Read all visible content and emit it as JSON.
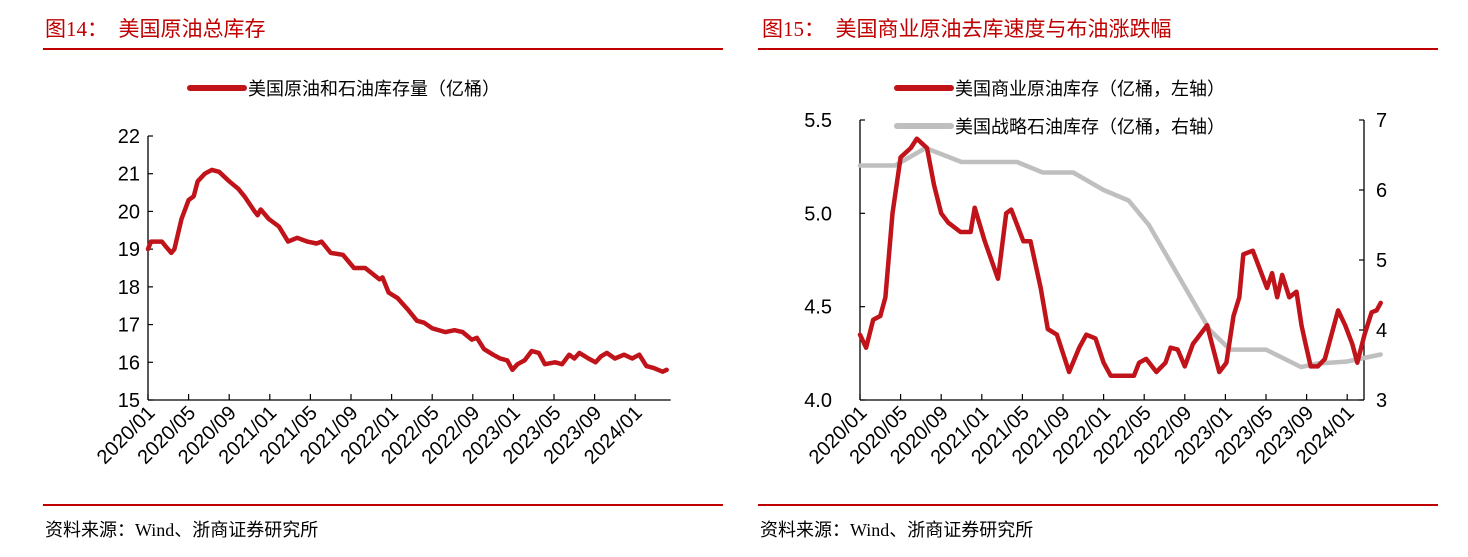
{
  "left": {
    "title": "图14：  美国原油总库存",
    "source": "资料来源：Wind、浙商证券研究所"
  },
  "right": {
    "title": "图15：  美国商业原油去库速度与布油涨跌幅",
    "source": "资料来源：Wind、浙商证券研究所"
  },
  "colors": {
    "accent": "#c00000",
    "series_red": "#c0141a",
    "series_gray": "#bfbfbf"
  },
  "chart_data": [
    {
      "type": "line",
      "title": "",
      "legend_position": "top",
      "grid": false,
      "xlabel": "",
      "ylabel": "",
      "x_ticks": [
        "2020/01",
        "2020/05",
        "2020/09",
        "2021/01",
        "2021/05",
        "2021/09",
        "2022/01",
        "2022/05",
        "2022/09",
        "2023/01",
        "2023/05",
        "2023/09",
        "2024/01"
      ],
      "y_ticks": [
        "22",
        "21",
        "20",
        "19",
        "18",
        "17",
        "16",
        "15"
      ],
      "ylim": [
        15,
        22
      ],
      "xlim": [
        "2020-01-01",
        "2024-04-10"
      ],
      "series": [
        {
          "name": "美国原油和石油库存量（亿桶）",
          "color": "#c0141a",
          "points": [
            [
              "2020-01-01",
              19.0
            ],
            [
              "2020-01-10",
              19.2
            ],
            [
              "2020-02-12",
              19.2
            ],
            [
              "2020-02-21",
              19.1
            ],
            [
              "2020-03-10",
              18.9
            ],
            [
              "2020-03-19",
              19.0
            ],
            [
              "2020-04-10",
              19.8
            ],
            [
              "2020-05-01",
              20.3
            ],
            [
              "2020-05-16",
              20.4
            ],
            [
              "2020-05-28",
              20.8
            ],
            [
              "2020-06-19",
              21.0
            ],
            [
              "2020-07-10",
              21.1
            ],
            [
              "2020-08-01",
              21.05
            ],
            [
              "2020-09-01",
              20.8
            ],
            [
              "2020-09-28",
              20.6
            ],
            [
              "2020-10-16",
              20.4
            ],
            [
              "2020-11-16",
              20.0
            ],
            [
              "2020-11-25",
              19.9
            ],
            [
              "2020-12-04",
              20.05
            ],
            [
              "2020-12-28",
              19.8
            ],
            [
              "2021-01-28",
              19.6
            ],
            [
              "2021-02-25",
              19.2
            ],
            [
              "2021-03-22",
              19.3
            ],
            [
              "2021-04-22",
              19.2
            ],
            [
              "2021-05-19",
              19.15
            ],
            [
              "2021-06-04",
              19.2
            ],
            [
              "2021-07-01",
              18.9
            ],
            [
              "2021-08-07",
              18.85
            ],
            [
              "2021-09-10",
              18.5
            ],
            [
              "2021-10-13",
              18.5
            ],
            [
              "2021-11-25",
              18.2
            ],
            [
              "2021-12-04",
              18.25
            ],
            [
              "2021-12-22",
              17.85
            ],
            [
              "2022-01-19",
              17.7
            ],
            [
              "2022-02-19",
              17.4
            ],
            [
              "2022-03-16",
              17.1
            ],
            [
              "2022-04-07",
              17.05
            ],
            [
              "2022-05-01",
              16.9
            ],
            [
              "2022-06-10",
              16.8
            ],
            [
              "2022-07-07",
              16.85
            ],
            [
              "2022-08-01",
              16.8
            ],
            [
              "2022-08-28",
              16.6
            ],
            [
              "2022-09-13",
              16.65
            ],
            [
              "2022-10-04",
              16.35
            ],
            [
              "2022-11-01",
              16.2
            ],
            [
              "2022-11-22",
              16.1
            ],
            [
              "2022-12-13",
              16.05
            ],
            [
              "2022-12-28",
              15.8
            ],
            [
              "2023-01-13",
              15.95
            ],
            [
              "2023-02-04",
              16.05
            ],
            [
              "2023-02-25",
              16.3
            ],
            [
              "2023-03-16",
              16.25
            ],
            [
              "2023-04-04",
              15.95
            ],
            [
              "2023-05-04",
              16.0
            ],
            [
              "2023-05-25",
              15.95
            ],
            [
              "2023-06-16",
              16.2
            ],
            [
              "2023-07-01",
              16.1
            ],
            [
              "2023-07-16",
              16.25
            ],
            [
              "2023-08-13",
              16.1
            ],
            [
              "2023-09-04",
              16.0
            ],
            [
              "2023-09-19",
              16.15
            ],
            [
              "2023-10-07",
              16.25
            ],
            [
              "2023-11-01",
              16.1
            ],
            [
              "2023-11-28",
              16.2
            ],
            [
              "2023-12-22",
              16.1
            ],
            [
              "2024-01-13",
              16.2
            ],
            [
              "2024-02-04",
              15.9
            ],
            [
              "2024-02-25",
              15.85
            ],
            [
              "2024-03-22",
              15.75
            ],
            [
              "2024-04-04",
              15.8
            ]
          ]
        }
      ]
    },
    {
      "type": "line",
      "title": "",
      "legend_position": "top",
      "grid": false,
      "xlabel": "",
      "ylabel": "",
      "y2label": "",
      "x_ticks": [
        "2020/01",
        "2020/05",
        "2020/09",
        "2021/01",
        "2021/05",
        "2021/09",
        "2022/01",
        "2022/05",
        "2022/09",
        "2023/01",
        "2023/05",
        "2023/09",
        "2024/01"
      ],
      "y_ticks": [
        "5.5",
        "5.0",
        "4.5",
        "4.0"
      ],
      "y2_ticks": [
        "7",
        "6",
        "5",
        "4",
        "3"
      ],
      "ylim": [
        4.0,
        5.5
      ],
      "y2lim": [
        3,
        7
      ],
      "xlim": [
        "2020-01-01",
        "2024-04-10"
      ],
      "series": [
        {
          "name": "美国商业原油库存（亿桶，左轴）",
          "axis": "left",
          "color": "#c0141a",
          "points": [
            [
              "2020-01-01",
              4.35
            ],
            [
              "2020-01-19",
              4.28
            ],
            [
              "2020-02-10",
              4.43
            ],
            [
              "2020-03-01",
              4.45
            ],
            [
              "2020-03-16",
              4.55
            ],
            [
              "2020-04-07",
              5.0
            ],
            [
              "2020-05-01",
              5.3
            ],
            [
              "2020-06-01",
              5.35
            ],
            [
              "2020-06-19",
              5.4
            ],
            [
              "2020-07-19",
              5.35
            ],
            [
              "2020-08-10",
              5.15
            ],
            [
              "2020-09-01",
              5.0
            ],
            [
              "2020-09-22",
              4.95
            ],
            [
              "2020-10-28",
              4.9
            ],
            [
              "2020-11-28",
              4.9
            ],
            [
              "2020-12-10",
              5.03
            ],
            [
              "2021-01-10",
              4.85
            ],
            [
              "2021-02-19",
              4.65
            ],
            [
              "2021-03-13",
              5.0
            ],
            [
              "2021-03-28",
              5.02
            ],
            [
              "2021-05-04",
              4.85
            ],
            [
              "2021-05-25",
              4.85
            ],
            [
              "2021-06-25",
              4.6
            ],
            [
              "2021-07-16",
              4.38
            ],
            [
              "2021-08-13",
              4.35
            ],
            [
              "2021-09-01",
              4.25
            ],
            [
              "2021-09-19",
              4.15
            ],
            [
              "2021-10-19",
              4.28
            ],
            [
              "2021-11-10",
              4.35
            ],
            [
              "2021-12-07",
              4.33
            ],
            [
              "2022-01-01",
              4.2
            ],
            [
              "2022-01-22",
              4.13
            ],
            [
              "2022-03-01",
              4.13
            ],
            [
              "2022-04-01",
              4.13
            ],
            [
              "2022-04-16",
              4.2
            ],
            [
              "2022-05-07",
              4.22
            ],
            [
              "2022-06-07",
              4.15
            ],
            [
              "2022-07-04",
              4.2
            ],
            [
              "2022-07-19",
              4.28
            ],
            [
              "2022-08-10",
              4.27
            ],
            [
              "2022-09-01",
              4.18
            ],
            [
              "2022-09-25",
              4.3
            ],
            [
              "2022-11-07",
              4.4
            ],
            [
              "2022-12-13",
              4.15
            ],
            [
              "2023-01-04",
              4.2
            ],
            [
              "2023-01-25",
              4.45
            ],
            [
              "2023-02-12",
              4.55
            ],
            [
              "2023-02-24",
              4.78
            ],
            [
              "2023-03-22",
              4.8
            ],
            [
              "2023-04-13",
              4.7
            ],
            [
              "2023-05-04",
              4.6
            ],
            [
              "2023-05-19",
              4.68
            ],
            [
              "2023-06-04",
              4.55
            ],
            [
              "2023-06-19",
              4.67
            ],
            [
              "2023-07-10",
              4.55
            ],
            [
              "2023-08-01",
              4.58
            ],
            [
              "2023-08-16",
              4.4
            ],
            [
              "2023-08-28",
              4.3
            ],
            [
              "2023-09-13",
              4.18
            ],
            [
              "2023-10-04",
              4.18
            ],
            [
              "2023-10-25",
              4.22
            ],
            [
              "2023-11-19",
              4.38
            ],
            [
              "2023-12-04",
              4.48
            ],
            [
              "2023-12-25",
              4.4
            ],
            [
              "2024-01-16",
              4.3
            ],
            [
              "2024-02-01",
              4.2
            ],
            [
              "2024-02-22",
              4.35
            ],
            [
              "2024-03-13",
              4.47
            ],
            [
              "2024-03-28",
              4.48
            ],
            [
              "2024-04-10",
              4.52
            ]
          ]
        },
        {
          "name": "美国战略石油库存（亿桶，右轴）",
          "axis": "right",
          "color": "#bfbfbf",
          "points": [
            [
              "2020-01-01",
              6.35
            ],
            [
              "2020-04-15",
              6.35
            ],
            [
              "2020-07-15",
              6.6
            ],
            [
              "2020-11-01",
              6.4
            ],
            [
              "2021-04-15",
              6.4
            ],
            [
              "2021-07-01",
              6.25
            ],
            [
              "2021-10-01",
              6.25
            ],
            [
              "2022-01-01",
              6.0
            ],
            [
              "2022-03-15",
              5.85
            ],
            [
              "2022-05-15",
              5.5
            ],
            [
              "2022-07-15",
              5.0
            ],
            [
              "2022-09-15",
              4.5
            ],
            [
              "2022-11-15",
              4.0
            ],
            [
              "2023-01-15",
              3.72
            ],
            [
              "2023-05-01",
              3.72
            ],
            [
              "2023-08-15",
              3.47
            ],
            [
              "2023-10-01",
              3.52
            ],
            [
              "2024-01-01",
              3.55
            ],
            [
              "2024-04-10",
              3.65
            ]
          ]
        }
      ]
    }
  ]
}
